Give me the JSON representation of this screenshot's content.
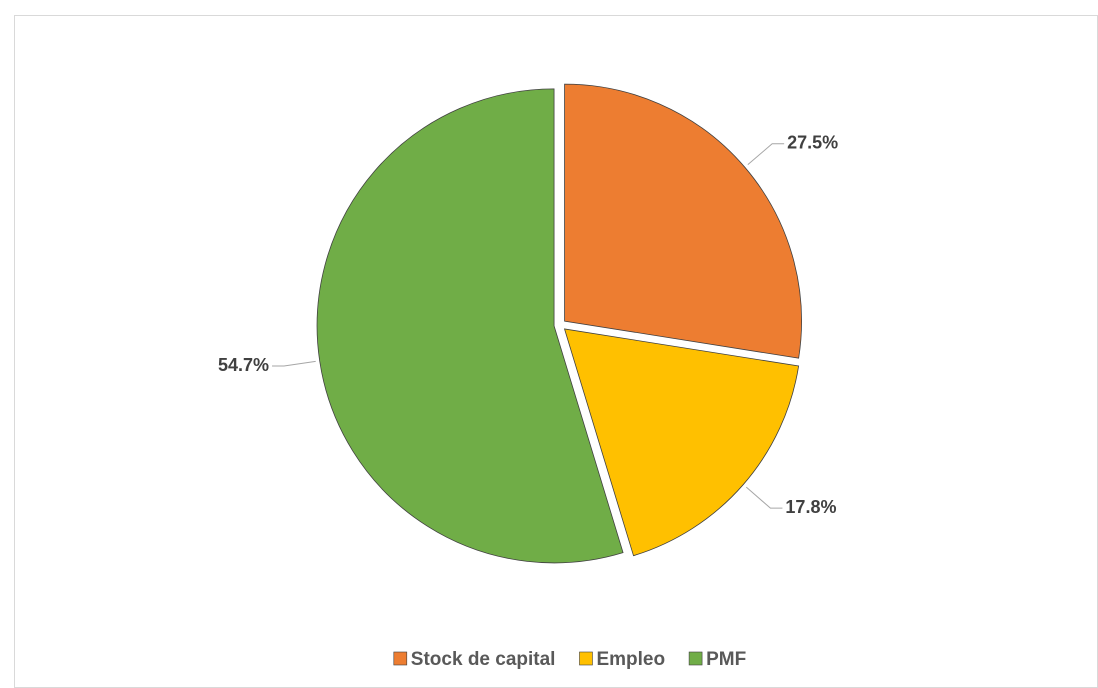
{
  "chart_data": {
    "type": "pie",
    "categories": [
      "Stock de capital",
      "Empleo",
      "PMF"
    ],
    "values": [
      27.5,
      17.8,
      54.7
    ],
    "value_labels": [
      "27.5%",
      "17.8%",
      "54.7%"
    ],
    "colors": [
      "#ed7d31",
      "#ffc000",
      "#70ad47"
    ],
    "legend": "bottom"
  }
}
